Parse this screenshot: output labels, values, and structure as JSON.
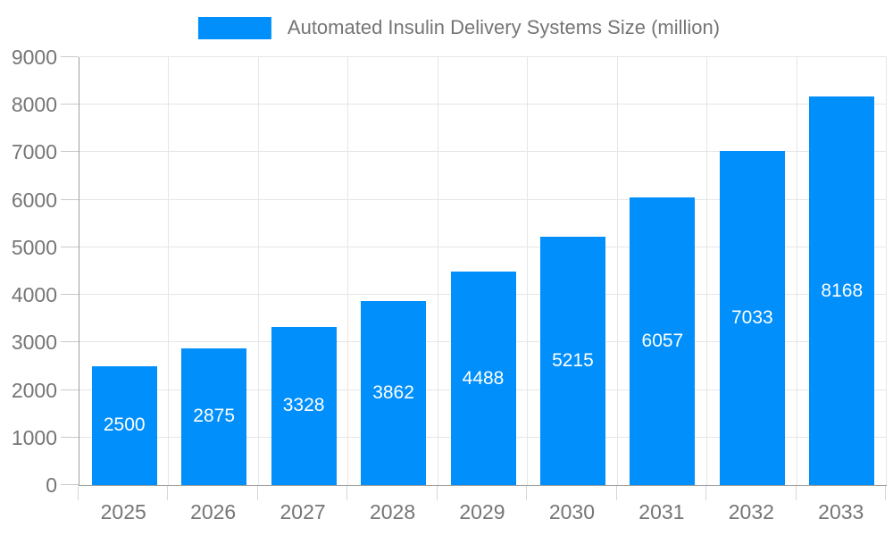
{
  "chart_data": {
    "type": "bar",
    "title": "Automated Insulin Delivery Systems Size (million)",
    "categories": [
      "2025",
      "2026",
      "2027",
      "2028",
      "2029",
      "2030",
      "2031",
      "2032",
      "2033"
    ],
    "values": [
      2500,
      2875,
      3328,
      3862,
      4488,
      5215,
      6057,
      7033,
      8168
    ],
    "xlabel": "",
    "ylabel": "",
    "ylim": [
      0,
      9000
    ],
    "ytick_step": 1000,
    "yticks": [
      0,
      1000,
      2000,
      3000,
      4000,
      5000,
      6000,
      7000,
      8000,
      9000
    ],
    "grid": "on",
    "legend_position": "top-center",
    "bar_label_position": "inside-center",
    "colors": {
      "bar": "#008FFB",
      "bar_label": "#ffffff",
      "grid_line": "#e6e6e6",
      "axis_line": "#9e9e9e",
      "y_tick_line": "#c9c9c9",
      "x_tick_line": "#d6d6d6",
      "axis_label": "#757575",
      "legend_label": "#757575",
      "background": "#ffffff"
    }
  }
}
